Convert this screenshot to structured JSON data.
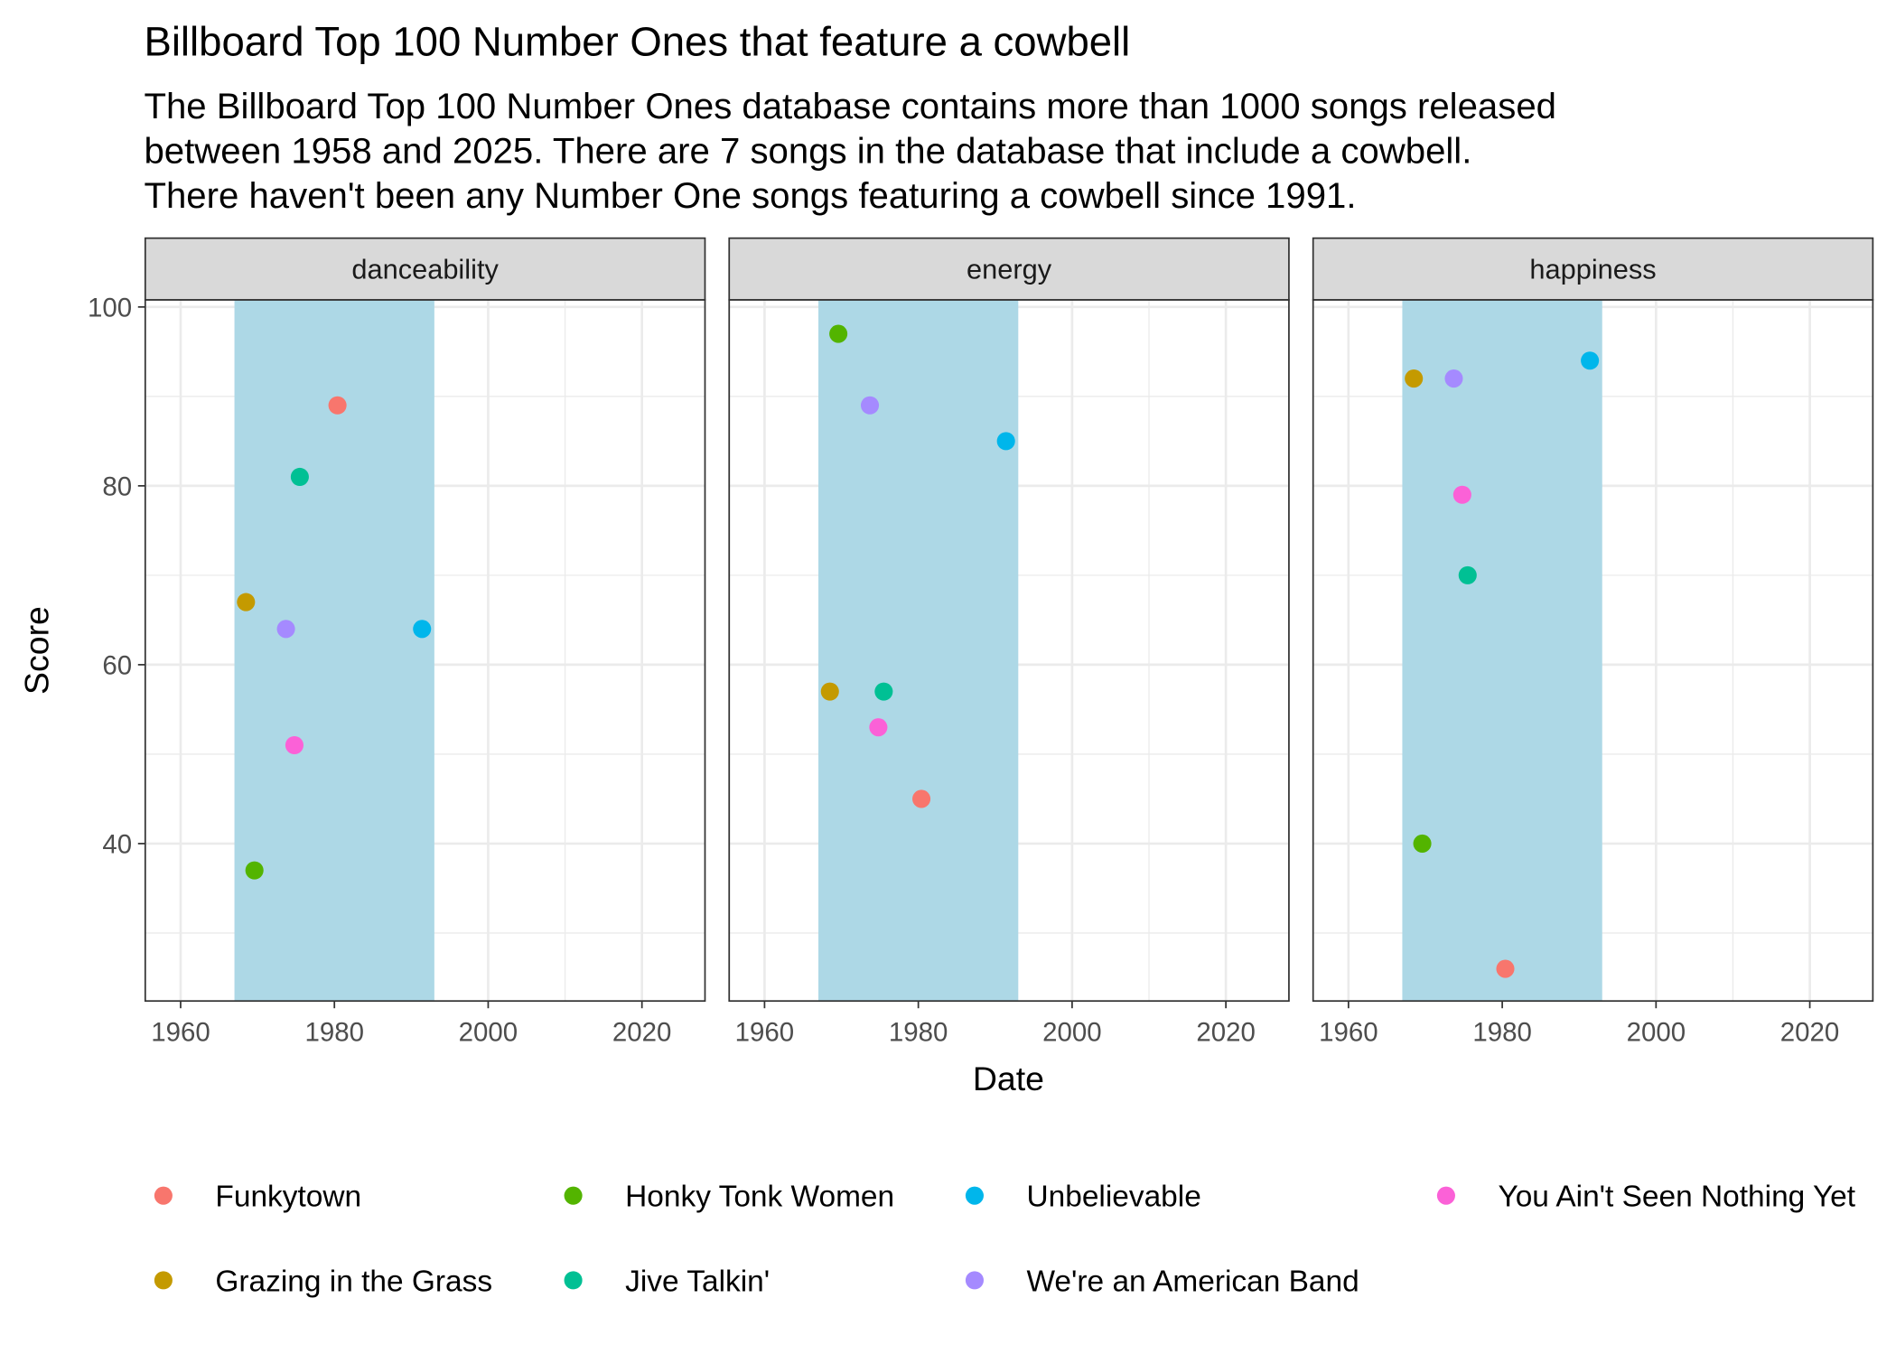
{
  "chart_data": {
    "type": "scatter",
    "title": "Billboard Top 100 Number Ones that feature a cowbell",
    "subtitle": [
      "The Billboard Top 100 Number Ones database contains more than 1000 songs released",
      "between 1958 and 2025. There are 7 songs in the database that include a cowbell.",
      "There haven't been any Number One songs featuring a cowbell since 1991."
    ],
    "x_label": "Date",
    "y_label": "Score",
    "facets": [
      "danceability",
      "energy",
      "happiness"
    ],
    "xlim": [
      1955.4,
      2028.2
    ],
    "xticks": [
      1960,
      1980,
      2000,
      2020
    ],
    "x_minor_grid": [
      1970,
      1990,
      2010
    ],
    "ylim": [
      22.4,
      100.8
    ],
    "yticks": [
      40,
      60,
      80,
      100
    ],
    "y_minor_grid": [
      30,
      50,
      70,
      90
    ],
    "grid": true,
    "shaded_region": {
      "xmin": 1967,
      "xmax": 1993,
      "color": "#add8e6"
    },
    "legend": "bottom",
    "series": [
      {
        "name": "Funkytown",
        "color": "#F8766D",
        "x": 1980.4,
        "values": [
          89,
          45,
          26
        ]
      },
      {
        "name": "Grazing in the Grass",
        "color": "#C49A00",
        "x": 1968.5,
        "values": [
          67,
          57,
          92
        ]
      },
      {
        "name": "Honky Tonk Women",
        "color": "#53B400",
        "x": 1969.6,
        "values": [
          37,
          97,
          40
        ]
      },
      {
        "name": "Jive Talkin'",
        "color": "#00C094",
        "x": 1975.5,
        "values": [
          81,
          57,
          70
        ]
      },
      {
        "name": "Unbelievable",
        "color": "#00B6EB",
        "x": 1991.4,
        "values": [
          64,
          85,
          94
        ]
      },
      {
        "name": "We're an American Band",
        "color": "#A58AFF",
        "x": 1973.7,
        "values": [
          64,
          89,
          92
        ]
      },
      {
        "name": "You Ain't Seen Nothing Yet",
        "color": "#FB61D7",
        "x": 1974.8,
        "values": [
          51,
          53,
          79
        ]
      }
    ]
  }
}
